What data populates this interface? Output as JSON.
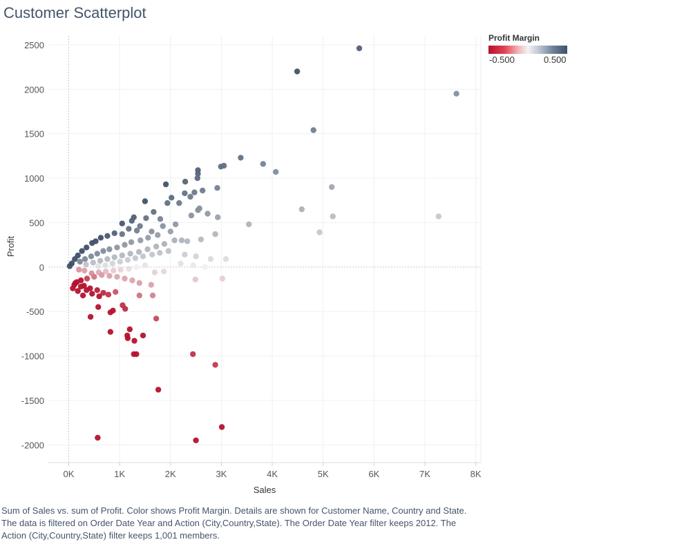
{
  "title": "Customer Scatterplot",
  "legend": {
    "title": "Profit Margin",
    "min_label": "-0.500",
    "max_label": "0.500",
    "colors": {
      "negative": "#b5122e",
      "neutral": "#f0f0f0",
      "positive": "#3f5168"
    }
  },
  "caption": "Sum of Sales vs. sum of Profit.  Color shows Profit Margin.  Details are shown for Customer Name, Country and State. The data is filtered on Order Date Year and Action (City,Country,State). The Order Date Year filter keeps 2012. The Action (City,Country,State) filter keeps 1,001 members.",
  "chart_data": {
    "type": "scatter",
    "title": "Customer Scatterplot",
    "xlabel": "Sales",
    "ylabel": "Profit",
    "xlim": [
      -400,
      8100
    ],
    "ylim": [
      -2200,
      2600
    ],
    "x_ticks": [
      0,
      1000,
      2000,
      3000,
      4000,
      5000,
      6000,
      7000,
      8000
    ],
    "x_tick_labels": [
      "0K",
      "1K",
      "2K",
      "3K",
      "4K",
      "5K",
      "6K",
      "7K",
      "8K"
    ],
    "y_ticks": [
      -2000,
      -1500,
      -1000,
      -500,
      0,
      500,
      1000,
      1500,
      2000,
      2500
    ],
    "y_tick_labels": [
      "-2000",
      "-1500",
      "-1000",
      "-500",
      "0",
      "500",
      "1000",
      "1500",
      "2000",
      "2500"
    ],
    "grid": true,
    "legend_position": "top-right",
    "color_encoding": "Profit Margin",
    "points": [
      [
        5710,
        2460
      ],
      [
        4490,
        2200
      ],
      [
        7620,
        1950
      ],
      [
        4810,
        1540
      ],
      [
        3380,
        1230
      ],
      [
        3820,
        1160
      ],
      [
        4070,
        1070
      ],
      [
        2990,
        1130
      ],
      [
        3050,
        1140
      ],
      [
        2540,
        1090
      ],
      [
        2540,
        1050
      ],
      [
        2530,
        1000
      ],
      [
        1910,
        930
      ],
      [
        2290,
        960
      ],
      [
        2920,
        890
      ],
      [
        5170,
        900
      ],
      [
        2630,
        860
      ],
      [
        2470,
        840
      ],
      [
        2280,
        830
      ],
      [
        2390,
        790
      ],
      [
        2020,
        780
      ],
      [
        1500,
        740
      ],
      [
        2170,
        720
      ],
      [
        1940,
        720
      ],
      [
        2570,
        660
      ],
      [
        2540,
        640
      ],
      [
        4580,
        650
      ],
      [
        2730,
        600
      ],
      [
        2410,
        580
      ],
      [
        2930,
        560
      ],
      [
        5190,
        570
      ],
      [
        7270,
        570
      ],
      [
        3540,
        480
      ],
      [
        4930,
        390
      ],
      [
        2880,
        370
      ],
      [
        2330,
        290
      ],
      [
        2600,
        310
      ],
      [
        2220,
        300
      ],
      [
        1520,
        550
      ],
      [
        1800,
        540
      ],
      [
        1240,
        520
      ],
      [
        1050,
        490
      ],
      [
        1280,
        560
      ],
      [
        1670,
        620
      ],
      [
        1400,
        460
      ],
      [
        1180,
        430
      ],
      [
        1340,
        410
      ],
      [
        900,
        380
      ],
      [
        1050,
        370
      ],
      [
        760,
        350
      ],
      [
        630,
        330
      ],
      [
        530,
        290
      ],
      [
        460,
        270
      ],
      [
        350,
        220
      ],
      [
        260,
        180
      ],
      [
        180,
        130
      ],
      [
        120,
        90
      ],
      [
        60,
        40
      ],
      [
        20,
        10
      ],
      [
        1630,
        400
      ],
      [
        1850,
        460
      ],
      [
        2100,
        480
      ],
      [
        2000,
        400
      ],
      [
        1750,
        360
      ],
      [
        1560,
        330
      ],
      [
        1410,
        300
      ],
      [
        1230,
        280
      ],
      [
        1100,
        250
      ],
      [
        950,
        220
      ],
      [
        800,
        200
      ],
      [
        680,
        180
      ],
      [
        560,
        150
      ],
      [
        440,
        120
      ],
      [
        320,
        90
      ],
      [
        220,
        60
      ],
      [
        2080,
        300
      ],
      [
        1880,
        260
      ],
      [
        1720,
        230
      ],
      [
        1550,
        200
      ],
      [
        1380,
        170
      ],
      [
        1210,
        150
      ],
      [
        1050,
        130
      ],
      [
        900,
        110
      ],
      [
        760,
        90
      ],
      [
        620,
        70
      ],
      [
        480,
        50
      ],
      [
        340,
        30
      ],
      [
        1960,
        180
      ],
      [
        1790,
        160
      ],
      [
        1640,
        140
      ],
      [
        1460,
        120
      ],
      [
        1310,
        100
      ],
      [
        1160,
        80
      ],
      [
        1010,
        60
      ],
      [
        860,
        40
      ],
      [
        720,
        20
      ],
      [
        580,
        10
      ],
      [
        2280,
        140
      ],
      [
        2500,
        120
      ],
      [
        2790,
        90
      ],
      [
        3090,
        90
      ],
      [
        2200,
        40
      ],
      [
        2450,
        20
      ],
      [
        2680,
        0
      ],
      [
        1500,
        20
      ],
      [
        1330,
        0
      ],
      [
        1180,
        -20
      ],
      [
        1020,
        -30
      ],
      [
        880,
        -40
      ],
      [
        730,
        -50
      ],
      [
        590,
        -60
      ],
      [
        450,
        -70
      ],
      [
        310,
        -40
      ],
      [
        200,
        -30
      ],
      [
        1690,
        -60
      ],
      [
        1870,
        -50
      ],
      [
        2490,
        -140
      ],
      [
        3020,
        -130
      ],
      [
        1620,
        -200
      ],
      [
        1390,
        -180
      ],
      [
        1250,
        -150
      ],
      [
        1100,
        -130
      ],
      [
        950,
        -110
      ],
      [
        800,
        -100
      ],
      [
        650,
        -90
      ],
      [
        500,
        -110
      ],
      [
        360,
        -130
      ],
      [
        240,
        -150
      ],
      [
        160,
        -170
      ],
      [
        110,
        -200
      ],
      [
        80,
        -240
      ],
      [
        300,
        -210
      ],
      [
        420,
        -240
      ],
      [
        560,
        -260
      ],
      [
        680,
        -290
      ],
      [
        460,
        -300
      ],
      [
        600,
        -330
      ],
      [
        780,
        -310
      ],
      [
        920,
        -280
      ],
      [
        180,
        -270
      ],
      [
        280,
        -320
      ],
      [
        350,
        -260
      ],
      [
        240,
        -220
      ],
      [
        130,
        -180
      ],
      [
        1390,
        -320
      ],
      [
        1650,
        -320
      ],
      [
        1060,
        -430
      ],
      [
        580,
        -450
      ],
      [
        820,
        -510
      ],
      [
        870,
        -490
      ],
      [
        430,
        -560
      ],
      [
        1720,
        -580
      ],
      [
        1110,
        -470
      ],
      [
        1200,
        -700
      ],
      [
        820,
        -730
      ],
      [
        1150,
        -770
      ],
      [
        1460,
        -770
      ],
      [
        1160,
        -800
      ],
      [
        1290,
        -830
      ],
      [
        1280,
        -980
      ],
      [
        1330,
        -980
      ],
      [
        2440,
        -980
      ],
      [
        2880,
        -1100
      ],
      [
        1760,
        -1380
      ],
      [
        3010,
        -1800
      ],
      [
        2500,
        -1950
      ],
      [
        570,
        -1920
      ]
    ]
  }
}
